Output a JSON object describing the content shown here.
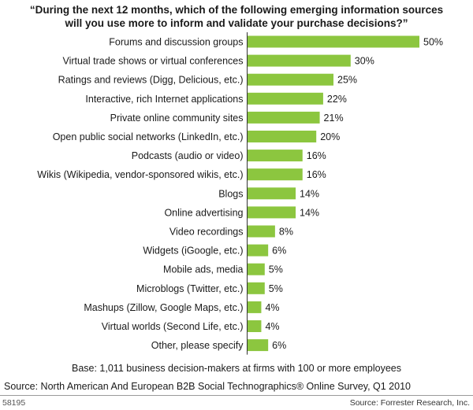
{
  "title_lines": [
    "“During the next 12 months, which of the following emerging information sources",
    "will you use more to inform and validate your purchase decisions?”"
  ],
  "base_note": "Base: 1,011 business decision-makers at firms with 100 or more employees",
  "source_note": "Source: North American And European B2B Social Technographics® Online Survey, Q1 2010",
  "figure_id": "58195",
  "credit": "Source: Forrester Research, Inc.",
  "colors": {
    "bar": "#8cc63f",
    "axis": "#333333"
  },
  "chart_data": {
    "type": "bar",
    "orientation": "horizontal",
    "title": "“During the next 12 months, which of the following emerging information sources will you use more to inform and validate your purchase decisions?”",
    "categories": [
      "Forums and discussion groups",
      "Virtual trade shows or virtual conferences",
      "Ratings and reviews (Digg, Delicious, etc.)",
      "Interactive, rich Internet applications",
      "Private online community sites",
      "Open public social networks (LinkedIn, etc.)",
      "Podcasts (audio or video)",
      "Wikis (Wikipedia, vendor-sponsored wikis, etc.)",
      "Blogs",
      "Online advertising",
      "Video recordings",
      "Widgets (iGoogle, etc.)",
      "Mobile ads, media",
      "Microblogs (Twitter, etc.)",
      "Mashups (Zillow, Google Maps, etc.)",
      "Virtual worlds (Second Life, etc.)",
      "Other, please specify"
    ],
    "values": [
      50,
      30,
      25,
      22,
      21,
      20,
      16,
      16,
      14,
      14,
      8,
      6,
      5,
      5,
      4,
      4,
      6
    ],
    "value_labels": [
      "50%",
      "30%",
      "25%",
      "22%",
      "21%",
      "20%",
      "16%",
      "16%",
      "14%",
      "14%",
      "8%",
      "6%",
      "5%",
      "5%",
      "4%",
      "4%",
      "6%"
    ],
    "xlim": [
      0,
      50
    ],
    "grid": false,
    "legend": "none"
  }
}
